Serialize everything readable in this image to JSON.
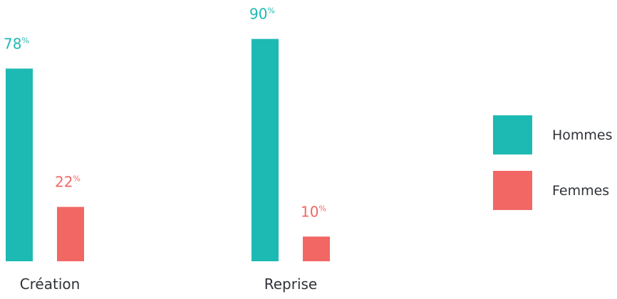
{
  "chart_data": {
    "type": "bar",
    "categories": [
      "Création",
      "Reprise"
    ],
    "series": [
      {
        "name": "Hommes",
        "values": [
          78,
          90
        ],
        "color": "#1dbab3"
      },
      {
        "name": "Femmes",
        "values": [
          22,
          10
        ],
        "color": "#f26764"
      }
    ],
    "value_suffix": "%",
    "ylim": [
      0,
      100
    ],
    "grid": false,
    "legend_position": "right",
    "title": "",
    "xlabel": "",
    "ylabel": ""
  },
  "legend": {
    "items": [
      {
        "label": "Hommes",
        "color": "#1dbab3"
      },
      {
        "label": "Femmes",
        "color": "#f26764"
      }
    ]
  }
}
